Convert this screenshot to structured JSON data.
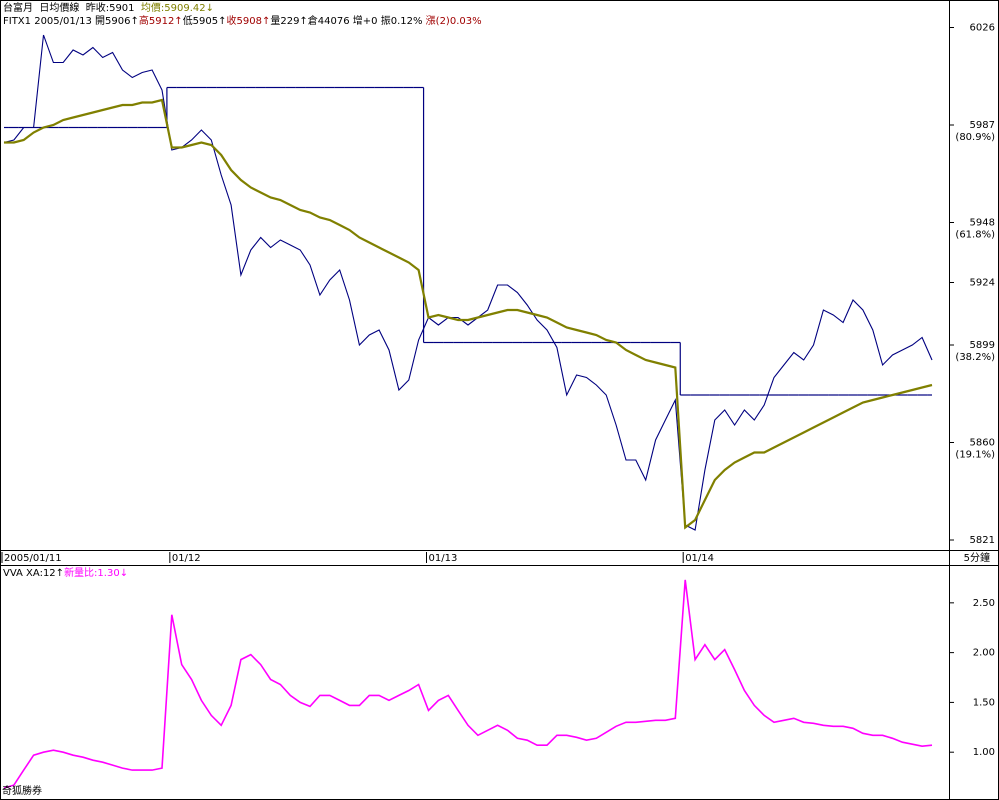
{
  "header": {
    "lines": [
      [
        {
          "text": "台富月  日均價線  昨收:5901  ",
          "color": "#000000"
        },
        {
          "text": "均價:5909.42↓",
          "color": "#808000"
        }
      ],
      [
        {
          "text": "FITX1 2005/01/13 開5906↑",
          "color": "#000000"
        },
        {
          "text": "高5912↑",
          "color": "#a00000"
        },
        {
          "text": "低5905↑",
          "color": "#000000"
        },
        {
          "text": "收5908↑",
          "color": "#a00000"
        },
        {
          "text": "量229↑倉44076 增+0 振0.12% ",
          "color": "#000000"
        },
        {
          "text": "漲(2)0.03%",
          "color": "#a00000"
        }
      ]
    ]
  },
  "chart_data": [
    {
      "type": "line",
      "categories": [
        "2005/01/11",
        null,
        null,
        null,
        null,
        null,
        null,
        null,
        null,
        null,
        null,
        null,
        null,
        null,
        null,
        null,
        null,
        "01/12",
        null,
        null,
        null,
        null,
        null,
        null,
        null,
        null,
        null,
        null,
        null,
        null,
        null,
        null,
        null,
        null,
        null,
        null,
        null,
        null,
        null,
        null,
        null,
        null,
        null,
        "01/13",
        null,
        null,
        null,
        null,
        null,
        null,
        null,
        null,
        null,
        null,
        null,
        null,
        null,
        null,
        null,
        null,
        null,
        null,
        null,
        null,
        null,
        null,
        null,
        null,
        null,
        "01/14",
        null,
        null,
        null,
        null,
        null,
        null,
        null,
        null,
        null,
        null,
        null,
        null,
        null,
        null,
        null,
        null,
        null,
        null,
        null,
        null,
        null,
        null,
        null,
        null,
        null
      ],
      "series": [
        {
          "color": "#000080",
          "values": [
            5980,
            5981,
            5986,
            5986,
            6023,
            6012,
            6012,
            6017,
            6015,
            6018,
            6014,
            6016,
            6009,
            6006,
            6008,
            6009,
            6001,
            5977,
            5978,
            5981,
            5985,
            5981,
            5967,
            5955,
            5927,
            5937,
            5942,
            5938,
            5941,
            5939,
            5937,
            5931,
            5919,
            5925,
            5929,
            5917,
            5899,
            5903,
            5905,
            5897,
            5881,
            5885,
            5901,
            5910,
            5907,
            5910,
            5910,
            5907,
            5910,
            5913,
            5923,
            5923,
            5920,
            5915,
            5909,
            5905,
            5898,
            5879,
            5887,
            5886,
            5883,
            5879,
            5867,
            5853,
            5853,
            5845,
            5861,
            5869,
            5877,
            5827,
            5825,
            5849,
            5869,
            5873,
            5867,
            5873,
            5869,
            5875,
            5886,
            5891,
            5896,
            5893,
            5899,
            5913,
            5911,
            5908,
            5917,
            5913,
            5905,
            5891,
            5895,
            5897,
            5899,
            5902,
            5893
          ]
        },
        {
          "color": "#000080",
          "step": true,
          "values": [
            5986,
            5986,
            5986,
            5986,
            5986,
            5986,
            5986,
            5986,
            5986,
            5986,
            5986,
            5986,
            5986,
            5986,
            5986,
            5986,
            5986,
            6002,
            6002,
            6002,
            6002,
            6002,
            6002,
            6002,
            6002,
            6002,
            6002,
            6002,
            6002,
            6002,
            6002,
            6002,
            6002,
            6002,
            6002,
            6002,
            6002,
            6002,
            6002,
            6002,
            6002,
            6002,
            6002,
            5900,
            5900,
            5900,
            5900,
            5900,
            5900,
            5900,
            5900,
            5900,
            5900,
            5900,
            5900,
            5900,
            5900,
            5900,
            5900,
            5900,
            5900,
            5900,
            5900,
            5900,
            5900,
            5900,
            5900,
            5900,
            5900,
            5879,
            5879,
            5879,
            5879,
            5879,
            5879,
            5879,
            5879,
            5879,
            5879,
            5879,
            5879,
            5879,
            5879,
            5879,
            5879,
            5879,
            5879,
            5879,
            5879,
            5879,
            5879,
            5879,
            5879,
            5879,
            5879
          ]
        },
        {
          "color": "#808000",
          "values": [
            5980,
            5980,
            5981,
            5984,
            5986,
            5987,
            5989,
            5990,
            5991,
            5992,
            5993,
            5994,
            5995,
            5995,
            5996,
            5996,
            5997,
            5978,
            5978,
            5979,
            5980,
            5979,
            5975,
            5969,
            5965,
            5962,
            5960,
            5958,
            5957,
            5955,
            5953,
            5952,
            5950,
            5949,
            5947,
            5945,
            5942,
            5940,
            5938,
            5936,
            5934,
            5932,
            5929,
            5910,
            5911,
            5910,
            5909,
            5909,
            5910,
            5911,
            5912,
            5913,
            5913,
            5912,
            5911,
            5910,
            5908,
            5906,
            5905,
            5904,
            5903,
            5901,
            5900,
            5897,
            5895,
            5893,
            5892,
            5891,
            5890,
            5826,
            5829,
            5837,
            5845,
            5849,
            5852,
            5854,
            5856,
            5856,
            5858,
            5860,
            5862,
            5864,
            5866,
            5868,
            5870,
            5872,
            5874,
            5876,
            5877,
            5878,
            5879,
            5880,
            5881,
            5882,
            5883
          ]
        }
      ],
      "ylim": [
        5817,
        6037
      ],
      "yticks": [
        6026,
        5987,
        5948,
        5924,
        5899,
        5860,
        5821
      ],
      "level_labels": [
        {
          "value": 5987,
          "label": "(80.9%)"
        },
        {
          "value": 5948,
          "label": "(61.8%)"
        },
        {
          "value": 5899,
          "label": "(38.2%)"
        },
        {
          "value": 5860,
          "label": "(19.1%)"
        }
      ],
      "interval": "5分鐘"
    },
    {
      "type": "line",
      "title_segments": [
        {
          "text": "VVA XA:12↑",
          "color": "#000000"
        },
        {
          "text": "新量比:1.30↓",
          "color": "#ff00ff"
        }
      ],
      "series": [
        {
          "color": "#ff00ff",
          "values": [
            0.64,
            0.67,
            0.82,
            0.97,
            1.0,
            1.02,
            1.0,
            0.97,
            0.95,
            0.92,
            0.9,
            0.87,
            0.84,
            0.82,
            0.82,
            0.82,
            0.84,
            2.38,
            1.88,
            1.73,
            1.52,
            1.37,
            1.27,
            1.47,
            1.93,
            1.98,
            1.88,
            1.73,
            1.68,
            1.57,
            1.5,
            1.46,
            1.57,
            1.57,
            1.52,
            1.47,
            1.47,
            1.57,
            1.57,
            1.52,
            1.57,
            1.62,
            1.68,
            1.42,
            1.52,
            1.57,
            1.42,
            1.27,
            1.17,
            1.22,
            1.27,
            1.22,
            1.14,
            1.12,
            1.07,
            1.07,
            1.17,
            1.17,
            1.15,
            1.12,
            1.14,
            1.2,
            1.26,
            1.3,
            1.3,
            1.31,
            1.32,
            1.32,
            1.34,
            2.73,
            1.93,
            2.08,
            1.93,
            2.03,
            1.83,
            1.62,
            1.47,
            1.37,
            1.3,
            1.32,
            1.34,
            1.3,
            1.29,
            1.27,
            1.26,
            1.26,
            1.24,
            1.19,
            1.17,
            1.17,
            1.14,
            1.1,
            1.08,
            1.06,
            1.07
          ]
        }
      ],
      "ylim": [
        0.54,
        2.88
      ],
      "yticks": [
        {
          "value": 2.5,
          "label": "2.50"
        },
        {
          "value": 2.0,
          "label": "2.00"
        },
        {
          "value": 1.5,
          "label": "1.50"
        },
        {
          "value": 1.0,
          "label": "1.00"
        }
      ]
    }
  ],
  "footer": {
    "brand": "奇狐勝券"
  }
}
